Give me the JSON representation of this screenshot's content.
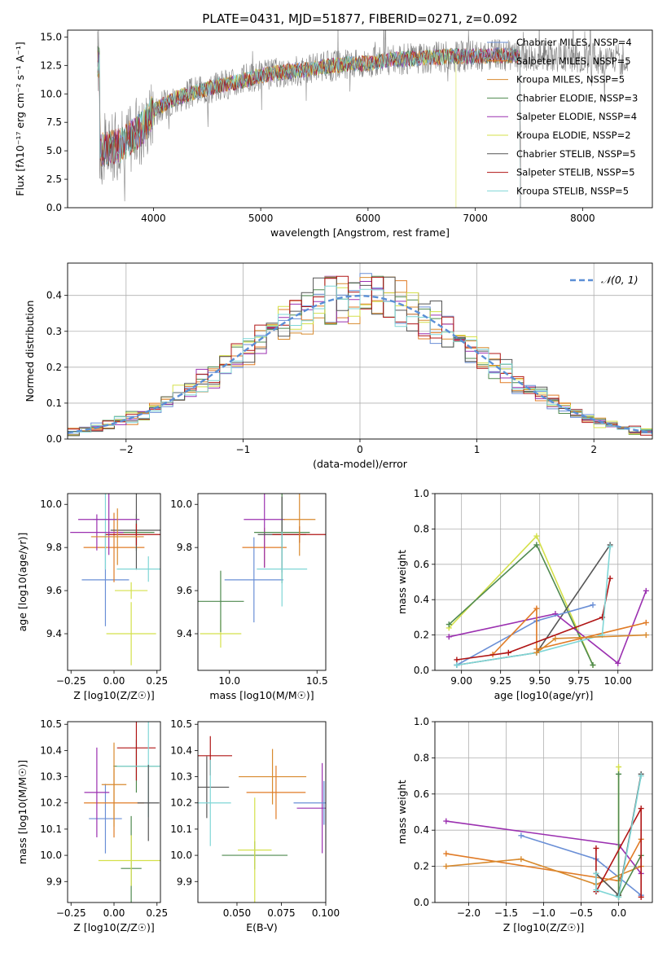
{
  "title": "PLATE=0431, MJD=51877, FIBERID=0271, z=0.092",
  "colors": {
    "models": [
      "#6a8fd6",
      "#e07b26",
      "#d88a2e",
      "#4f8a4f",
      "#9b30b0",
      "#d4e04a",
      "#555555",
      "#b01515",
      "#7fd6d6"
    ],
    "spectrum": "#808080",
    "normal": "#5b8fd6",
    "pink": "#e06fb0"
  },
  "chart_data": [
    {
      "type": "line",
      "title": "PLATE=0431, MJD=51877, FIBERID=0271, z=0.092",
      "xlabel": "wavelength [Angstrom, rest frame]",
      "ylabel": "Flux [fλ10⁻¹⁷ erg cm⁻² s⁻¹ A⁻¹]",
      "xlim": [
        3200,
        8650
      ],
      "ylim": [
        0,
        15.6
      ],
      "xticks": [
        "4000",
        "5000",
        "6000",
        "7000",
        "8000"
      ],
      "yticks": [
        "0.0",
        "2.5",
        "5.0",
        "7.5",
        "10.0",
        "12.5",
        "15.0"
      ],
      "legend_position": "top-right",
      "legend": [
        "Chabrier MILES, NSSP=4",
        "Salpeter MILES, NSSP=5",
        "Kroupa MILES, NSSP=5",
        "Chabrier ELODIE, NSSP=3",
        "Salpeter ELODIE, NSSP=4",
        "Kroupa ELODIE, NSSP=2",
        "Chabrier STELIB, NSSP=5",
        "Salpeter STELIB, NSSP=5",
        "Kroupa STELIB, NSSP=5"
      ],
      "continuum": [
        [
          3500,
          5.0
        ],
        [
          3700,
          5.5
        ],
        [
          3900,
          7.0
        ],
        [
          4000,
          8.5
        ],
        [
          4200,
          9.6
        ],
        [
          4400,
          10.2
        ],
        [
          4600,
          10.7
        ],
        [
          4800,
          11.1
        ],
        [
          5000,
          11.6
        ],
        [
          5200,
          11.9
        ],
        [
          5400,
          12.1
        ],
        [
          5600,
          12.4
        ],
        [
          5800,
          12.6
        ],
        [
          6000,
          12.7
        ],
        [
          6200,
          13.0
        ],
        [
          6400,
          13.1
        ],
        [
          6600,
          13.2
        ],
        [
          6800,
          13.3
        ],
        [
          7000,
          13.3
        ],
        [
          7200,
          13.4
        ],
        [
          7400,
          13.3
        ],
        [
          7600,
          13.4
        ],
        [
          7800,
          13.3
        ],
        [
          8000,
          13.2
        ],
        [
          8200,
          13.1
        ],
        [
          8400,
          13.0
        ]
      ]
    },
    {
      "type": "histogram",
      "xlabel": "(data-model)/error",
      "ylabel": "Normed distribution",
      "xlim": [
        -2.5,
        2.5
      ],
      "ylim": [
        0,
        0.49
      ],
      "xticks": [
        "−2",
        "−1",
        "0",
        "1",
        "2"
      ],
      "yticks": [
        "0.0",
        "0.1",
        "0.2",
        "0.3",
        "0.4"
      ],
      "legend": [
        "𝒩(0, 1)"
      ],
      "legend_position": "top-right",
      "grid": true
    },
    {
      "type": "scatter",
      "xlabel": "Z [log10(Z/Z☉)]",
      "ylabel": "age  [log10(age/yr)]",
      "xlim": [
        -0.27,
        0.27
      ],
      "ylim": [
        9.23,
        10.05
      ],
      "xticks": [
        "−0.25",
        "0.00",
        "0.25"
      ],
      "yticks": [
        "9.4",
        "9.6",
        "9.8",
        "10.0"
      ],
      "points": [
        {
          "x": -0.05,
          "y": 9.65,
          "c": 0
        },
        {
          "x": 0.0,
          "y": 9.8,
          "c": 1
        },
        {
          "x": -0.05,
          "y": 9.93,
          "c": 8
        },
        {
          "x": 0.13,
          "y": 9.87,
          "c": 3
        },
        {
          "x": -0.1,
          "y": 9.87,
          "c": 4
        },
        {
          "x": 0.1,
          "y": 9.4,
          "c": 5
        },
        {
          "x": 0.13,
          "y": 9.88,
          "c": 6
        },
        {
          "x": 0.13,
          "y": 9.86,
          "c": 7
        },
        {
          "x": 0.2,
          "y": 9.7,
          "c": 8
        },
        {
          "x": -0.03,
          "y": 9.93,
          "c": 4
        },
        {
          "x": 0.02,
          "y": 9.85,
          "c": 2
        },
        {
          "x": 0.1,
          "y": 9.6,
          "c": 5
        }
      ]
    },
    {
      "type": "scatter",
      "xlabel": "mass [log10(M/M☉)]",
      "xlim": [
        9.82,
        10.55
      ],
      "ylim": [
        9.23,
        10.05
      ],
      "xticks": [
        "10.0",
        "10.5"
      ],
      "yticks": [
        "9.4",
        "9.6",
        "9.8",
        "10.0"
      ],
      "points": [
        {
          "x": 10.14,
          "y": 9.65,
          "c": 0
        },
        {
          "x": 10.2,
          "y": 9.8,
          "c": 1
        },
        {
          "x": 10.2,
          "y": 9.93,
          "c": 4
        },
        {
          "x": 10.3,
          "y": 9.87,
          "c": 3
        },
        {
          "x": 10.3,
          "y": 9.86,
          "c": 6
        },
        {
          "x": 10.4,
          "y": 9.86,
          "c": 7
        },
        {
          "x": 9.95,
          "y": 9.4,
          "c": 5
        },
        {
          "x": 9.95,
          "y": 9.55,
          "c": 3
        },
        {
          "x": 10.3,
          "y": 9.7,
          "c": 8
        },
        {
          "x": 10.4,
          "y": 9.93,
          "c": 2
        }
      ]
    },
    {
      "type": "line",
      "xlabel": "age  [log10(age/yr)]",
      "ylabel": "mass weight",
      "xlim": [
        8.83,
        10.22
      ],
      "ylim": [
        0,
        1.0
      ],
      "xticks": [
        "9.00",
        "9.25",
        "9.50",
        "9.75",
        "10.00"
      ],
      "yticks": [
        "0.0",
        "0.2",
        "0.4",
        "0.6",
        "0.8",
        "1.0"
      ],
      "grid": true,
      "series": [
        {
          "c": 5,
          "x": [
            8.92,
            9.48,
            9.84
          ],
          "y": [
            0.24,
            0.76,
            0.03
          ]
        },
        {
          "c": 3,
          "x": [
            8.92,
            9.48,
            9.84
          ],
          "y": [
            0.26,
            0.71,
            0.03
          ]
        },
        {
          "c": 6,
          "x": [
            8.97,
            9.48,
            9.95
          ],
          "y": [
            0.03,
            0.1,
            0.71
          ]
        },
        {
          "c": 4,
          "x": [
            8.92,
            9.6,
            10.0,
            10.18
          ],
          "y": [
            0.19,
            0.32,
            0.04,
            0.45
          ]
        },
        {
          "c": 0,
          "x": [
            8.97,
            9.48,
            9.84
          ],
          "y": [
            0.03,
            0.28,
            0.37
          ]
        },
        {
          "c": 1,
          "x": [
            9.2,
            9.48,
            9.48,
            10.18
          ],
          "y": [
            0.09,
            0.35,
            0.12,
            0.27
          ]
        },
        {
          "c": 7,
          "x": [
            8.97,
            9.3,
            9.9,
            9.95
          ],
          "y": [
            0.06,
            0.1,
            0.3,
            0.52
          ]
        },
        {
          "c": 8,
          "x": [
            8.97,
            9.48,
            9.9,
            9.95
          ],
          "y": [
            0.03,
            0.1,
            0.2,
            0.7
          ]
        },
        {
          "c": 2,
          "x": [
            9.48,
            9.6,
            10.18
          ],
          "y": [
            0.1,
            0.18,
            0.2
          ]
        }
      ]
    },
    {
      "type": "scatter",
      "xlabel": "Z [log10(Z/Z☉)]",
      "ylabel": "mass [log10(M/M☉)]",
      "xlim": [
        -0.27,
        0.27
      ],
      "ylim": [
        9.82,
        10.51
      ],
      "xticks": [
        "−0.25",
        "0.00",
        "0.25"
      ],
      "yticks": [
        "9.9",
        "10.0",
        "10.1",
        "10.2",
        "10.3",
        "10.4",
        "10.5"
      ],
      "points": [
        {
          "x": -0.05,
          "y": 10.14,
          "c": 0
        },
        {
          "x": 0.0,
          "y": 10.2,
          "c": 1
        },
        {
          "x": -0.1,
          "y": 10.24,
          "c": 4
        },
        {
          "x": 0.13,
          "y": 10.34,
          "c": 3
        },
        {
          "x": 0.13,
          "y": 10.41,
          "c": 7
        },
        {
          "x": 0.2,
          "y": 10.34,
          "c": 8
        },
        {
          "x": 0.1,
          "y": 9.95,
          "c": 3
        },
        {
          "x": 0.1,
          "y": 9.98,
          "c": 5
        },
        {
          "x": 0.0,
          "y": 10.27,
          "c": 2
        },
        {
          "x": 0.2,
          "y": 10.2,
          "c": 6
        }
      ]
    },
    {
      "type": "scatter",
      "xlabel": "E(B-V)",
      "xlim": [
        0.028,
        0.1
      ],
      "ylim": [
        9.82,
        10.51
      ],
      "xticks": [
        "0.050",
        "0.075",
        "0.100"
      ],
      "yticks": [
        "9.9",
        "10.0",
        "10.1",
        "10.2",
        "10.3",
        "10.4",
        "10.5"
      ],
      "points": [
        {
          "x": 0.033,
          "y": 10.26,
          "c": 6
        },
        {
          "x": 0.035,
          "y": 10.38,
          "c": 7
        },
        {
          "x": 0.035,
          "y": 10.2,
          "c": 8
        },
        {
          "x": 0.06,
          "y": 10.0,
          "c": 3
        },
        {
          "x": 0.06,
          "y": 10.02,
          "c": 5
        },
        {
          "x": 0.07,
          "y": 10.3,
          "c": 2
        },
        {
          "x": 0.072,
          "y": 10.24,
          "c": 1
        },
        {
          "x": 0.098,
          "y": 10.18,
          "c": 4
        },
        {
          "x": 0.099,
          "y": 10.2,
          "c": 0
        }
      ]
    },
    {
      "type": "line",
      "xlabel": "Z [log10(Z/Z☉)]",
      "ylabel": "mass weight",
      "xlim": [
        -2.45,
        0.45
      ],
      "ylim": [
        0,
        1.0
      ],
      "xticks": [
        "−2.0",
        "−1.5",
        "−1.0",
        "−0.5",
        "0.0"
      ],
      "yticks": [
        "0.0",
        "0.2",
        "0.4",
        "0.6",
        "0.8",
        "1.0"
      ],
      "grid": true,
      "series": [
        {
          "c": 4,
          "x": [
            -2.3,
            0.0,
            0.3
          ],
          "y": [
            0.45,
            0.32,
            0.16
          ]
        },
        {
          "c": 0,
          "x": [
            -1.3,
            -0.3,
            0.3
          ],
          "y": [
            0.37,
            0.24,
            0.04
          ]
        },
        {
          "c": 1,
          "x": [
            -2.3,
            0.0,
            0.3
          ],
          "y": [
            0.27,
            0.12,
            0.35
          ]
        },
        {
          "c": 2,
          "x": [
            -2.3,
            -1.3,
            -0.3,
            0.3
          ],
          "y": [
            0.2,
            0.24,
            0.1,
            0.2
          ]
        },
        {
          "c": 5,
          "x": [
            0.0,
            0.0,
            0.0
          ],
          "y": [
            0.75,
            0.04,
            0.03
          ]
        },
        {
          "c": 3,
          "x": [
            0.0,
            0.0,
            0.3
          ],
          "y": [
            0.71,
            0.03,
            0.26
          ]
        },
        {
          "c": 6,
          "x": [
            -0.3,
            0.0,
            0.3
          ],
          "y": [
            0.16,
            0.04,
            0.71
          ]
        },
        {
          "c": 7,
          "x": [
            -0.3,
            -0.3,
            0.3,
            0.3
          ],
          "y": [
            0.3,
            0.06,
            0.52,
            0.03
          ]
        },
        {
          "c": 8,
          "x": [
            -0.3,
            -0.3,
            0.0,
            0.3
          ],
          "y": [
            0.16,
            0.07,
            0.03,
            0.7
          ]
        }
      ]
    }
  ]
}
